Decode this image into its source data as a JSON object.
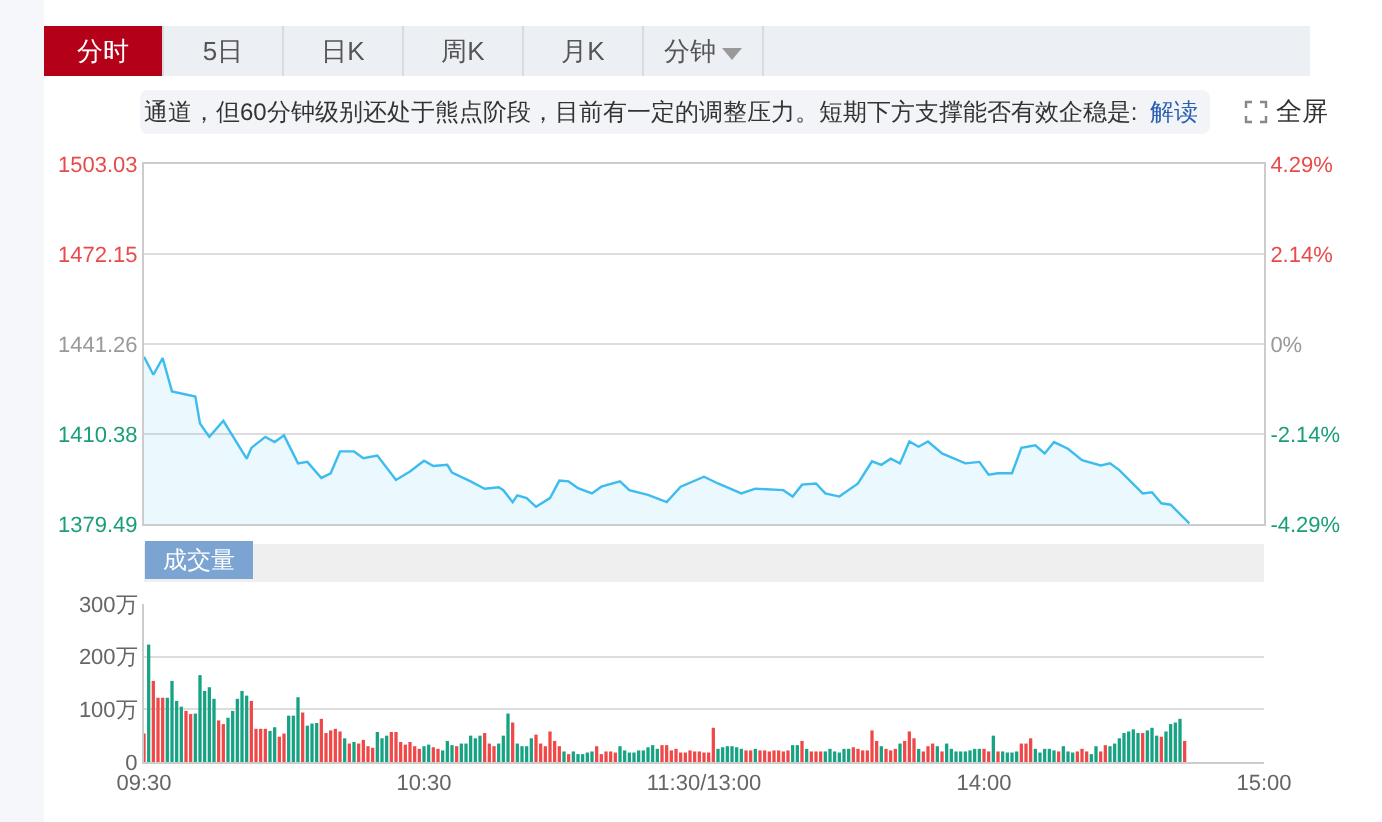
{
  "chart_data": [
    {
      "type": "area",
      "annotations": [
        "分时",
        "5日",
        "日K",
        "周K",
        "月K",
        "分钟",
        "通道，但60分钟级别还处于熊点阶段，目前有一定的调整压力。短期下方支撑能否有效企稳是:",
        "解读",
        "全屏"
      ],
      "categories": [
        null,
        null,
        null,
        null,
        null,
        null,
        null,
        null,
        null,
        null,
        null,
        null,
        null,
        null,
        null,
        null,
        null,
        null,
        null,
        null,
        null,
        null,
        null,
        null,
        null,
        null,
        null,
        null,
        null,
        null,
        null,
        null,
        null,
        null,
        null,
        null,
        null,
        null,
        null,
        null,
        null,
        null,
        null,
        null,
        null,
        null,
        null,
        null,
        null,
        null,
        null,
        null,
        null,
        null,
        null,
        null,
        null,
        null,
        null,
        null,
        null,
        null,
        null,
        null,
        null,
        null,
        null,
        null,
        null,
        null,
        null,
        null,
        null,
        null,
        null,
        null,
        null,
        null,
        null,
        null,
        null,
        null,
        null,
        null,
        null,
        null,
        null,
        null,
        null,
        null,
        null,
        null,
        null,
        null,
        null,
        null,
        null,
        null,
        null,
        null,
        null,
        null,
        null,
        null,
        null,
        null,
        null,
        null,
        null,
        null,
        null,
        null,
        null,
        null,
        null,
        null,
        null,
        null,
        null,
        null,
        null,
        null,
        null,
        null,
        null,
        null,
        null,
        null,
        null,
        null,
        null,
        null,
        null,
        null,
        null,
        null,
        null,
        null,
        null,
        null,
        null,
        null,
        null,
        null,
        null,
        null,
        null,
        null,
        null,
        null,
        null,
        null,
        null,
        null,
        null,
        null,
        null,
        null,
        null,
        null,
        null,
        null,
        null,
        null,
        null,
        null,
        null,
        null,
        null,
        null,
        null,
        null,
        null,
        null,
        null,
        null,
        null,
        null,
        null,
        null,
        null,
        null,
        null,
        null,
        null,
        null,
        null,
        null,
        null,
        null,
        null,
        null,
        null,
        null,
        null,
        null,
        null,
        null,
        null,
        null,
        null,
        null,
        null,
        null,
        null,
        null,
        null,
        null,
        null,
        null,
        null,
        null,
        null,
        null,
        null,
        null,
        null,
        null,
        null,
        null,
        null,
        null,
        null,
        null,
        null,
        null,
        null,
        null,
        null,
        null,
        null,
        null,
        null,
        null,
        null,
        null,
        null,
        null,
        null,
        null,
        null
      ],
      "series": [
        {
          "color": "#3dbcf0",
          "values": [
            1436.9,
            null,
            1430.7,
            null,
            1436.4,
            null,
            1425.0,
            null,
            null,
            null,
            null,
            1423.2,
            1414.0,
            null,
            1409.4,
            null,
            null,
            1414.9,
            null,
            null,
            null,
            null,
            1401.9,
            1405.6,
            null,
            null,
            1409.4,
            null,
            1407.6,
            null,
            1409.9,
            null,
            null,
            1400.3,
            null,
            1400.8,
            null,
            null,
            1395.3,
            null,
            1396.9,
            null,
            1404.4,
            null,
            null,
            1404.4,
            null,
            1402.1,
            null,
            null,
            1403.0,
            null,
            null,
            null,
            1394.6,
            null,
            null,
            1397.5,
            null,
            null,
            1401.2,
            null,
            1399.4,
            null,
            null,
            1399.8,
            1397.1,
            null,
            null,
            null,
            1394.1,
            null,
            null,
            1391.6,
            null,
            null,
            1392.1,
            1391.1,
            null,
            1387.0,
            1389.3,
            null,
            1388.4,
            null,
            1385.4,
            null,
            null,
            1388.4,
            null,
            1394.4,
            null,
            1394.1,
            null,
            1391.8,
            null,
            null,
            1390.0,
            null,
            1392.3,
            null,
            null,
            null,
            1394.1,
            null,
            1391.1,
            null,
            null,
            null,
            1389.5,
            null,
            null,
            null,
            1387.0,
            null,
            null,
            1392.3,
            null,
            null,
            null,
            null,
            1395.7,
            null,
            null,
            1393.4,
            null,
            null,
            null,
            null,
            1390.0,
            null,
            null,
            1391.6,
            null,
            null,
            null,
            null,
            null,
            1391.1,
            null,
            1388.9,
            null,
            1393.0,
            null,
            null,
            1393.4,
            null,
            1390.0,
            null,
            null,
            1388.9,
            null,
            null,
            null,
            1393.4,
            null,
            null,
            1401.0,
            null,
            1399.8,
            null,
            1401.9,
            null,
            1400.3,
            null,
            1407.8,
            null,
            1406.0,
            null,
            1407.8,
            null,
            null,
            1403.7,
            null,
            null,
            null,
            null,
            1400.3,
            null,
            null,
            1400.8,
            null,
            1396.4,
            null,
            1396.9,
            null,
            null,
            1396.9,
            null,
            1405.6,
            null,
            null,
            1406.5,
            null,
            1403.7,
            null,
            1407.6,
            null,
            null,
            1405.3,
            null,
            null,
            1401.4,
            null,
            null,
            null,
            1399.6,
            null,
            1400.3,
            null,
            1398.0,
            null,
            null,
            null,
            null,
            1390.0,
            null,
            1390.4,
            null,
            1386.6,
            null,
            1386.1,
            null,
            null,
            null,
            1379.7,
            null,
            null,
            null,
            null,
            null,
            null,
            null,
            null,
            null,
            null,
            null,
            null,
            null,
            null,
            null,
            null
          ]
        }
      ],
      "ylim": [
        1379.49,
        1503.03
      ],
      "yticks": [
        1379.49,
        1410.38,
        1441.26,
        1472.15,
        1503.03
      ],
      "y2lim": [
        -4.29,
        4.29
      ],
      "y2ticks": [
        {
          "value": -4.29,
          "label": "-4.29%"
        },
        {
          "value": -2.14,
          "label": "-2.14%"
        },
        {
          "value": 0,
          "label": "0%"
        },
        {
          "value": 2.14,
          "label": "2.14%"
        },
        {
          "value": 4.29,
          "label": "4.29%"
        }
      ],
      "grid": "y",
      "tick_labels": "y"
    },
    {
      "type": "bar",
      "title": "成交量",
      "categories": [
        "09:30",
        null,
        null,
        null,
        null,
        null,
        null,
        null,
        null,
        null,
        null,
        null,
        null,
        null,
        null,
        null,
        null,
        null,
        null,
        null,
        null,
        null,
        null,
        null,
        null,
        null,
        null,
        null,
        null,
        null,
        null,
        null,
        null,
        null,
        null,
        null,
        null,
        null,
        null,
        null,
        null,
        null,
        null,
        null,
        null,
        null,
        null,
        null,
        null,
        null,
        null,
        null,
        null,
        null,
        null,
        null,
        null,
        null,
        null,
        null,
        "10:30",
        null,
        null,
        null,
        null,
        null,
        null,
        null,
        null,
        null,
        null,
        null,
        null,
        null,
        null,
        null,
        null,
        null,
        null,
        null,
        null,
        null,
        null,
        null,
        null,
        null,
        null,
        null,
        null,
        null,
        null,
        null,
        null,
        null,
        null,
        null,
        null,
        null,
        null,
        null,
        null,
        null,
        null,
        null,
        null,
        null,
        null,
        null,
        null,
        null,
        null,
        null,
        null,
        null,
        null,
        null,
        null,
        null,
        null,
        null,
        "11:30/13:00",
        null,
        null,
        null,
        null,
        null,
        null,
        null,
        null,
        null,
        null,
        null,
        null,
        null,
        null,
        null,
        null,
        null,
        null,
        null,
        null,
        null,
        null,
        null,
        null,
        null,
        null,
        null,
        null,
        null,
        null,
        null,
        null,
        null,
        null,
        null,
        null,
        null,
        null,
        null,
        null,
        null,
        null,
        null,
        null,
        null,
        null,
        null,
        null,
        null,
        null,
        null,
        null,
        null,
        null,
        null,
        null,
        null,
        null,
        null,
        "14:00",
        null,
        null,
        null,
        null,
        null,
        null,
        null,
        null,
        null,
        null,
        null,
        null,
        null,
        null,
        null,
        null,
        null,
        null,
        null,
        null,
        null,
        null,
        null,
        null,
        null,
        null,
        null,
        null,
        null,
        null,
        null,
        null,
        null,
        null,
        null,
        null,
        null,
        null,
        null,
        null,
        null,
        null,
        null,
        null,
        null,
        null,
        null,
        null,
        null,
        null,
        null,
        null,
        null,
        null,
        null,
        null,
        null,
        null,
        null,
        "15:00"
      ],
      "series": [
        {
          "color": "#f04848",
          "values": [
            54,
            null,
            154,
            122,
            122,
            null,
            null,
            null,
            null,
            97,
            91,
            null,
            null,
            null,
            null,
            null,
            79,
            72,
            null,
            null,
            null,
            null,
            null,
            116,
            63,
            63,
            63,
            null,
            null,
            48,
            54,
            null,
            null,
            null,
            94,
            null,
            null,
            null,
            82,
            55,
            60,
            63,
            58,
            null,
            35,
            null,
            35,
            42,
            30,
            27,
            null,
            null,
            null,
            57,
            57,
            38,
            33,
            38,
            30,
            25,
            null,
            null,
            28,
            25,
            null,
            null,
            null,
            30,
            null,
            null,
            null,
            null,
            null,
            55,
            35,
            30,
            null,
            null,
            null,
            75,
            null,
            null,
            null,
            null,
            52,
            35,
            30,
            58,
            40,
            30,
            null,
            15,
            null,
            null,
            null,
            null,
            null,
            30,
            15,
            20,
            20,
            18,
            null,
            null,
            null,
            null,
            null,
            null,
            null,
            null,
            null,
            32,
            32,
            22,
            25,
            18,
            18,
            22,
            20,
            20,
            18,
            18,
            65,
            null,
            null,
            null,
            null,
            null,
            null,
            22,
            22,
            null,
            22,
            22,
            20,
            22,
            22,
            20,
            22,
            null,
            null,
            40,
            null,
            20,
            20,
            20,
            null,
            null,
            null,
            null,
            null,
            null,
            28,
            25,
            22,
            22,
            60,
            40,
            null,
            25,
            22,
            25,
            null,
            40,
            58,
            45,
            null,
            20,
            30,
            35,
            null,
            20,
            null,
            null,
            null,
            null,
            null,
            null,
            null,
            null,
            25,
            20,
            null,
            20,
            null,
            null,
            null,
            null,
            35,
            35,
            45,
            null,
            null,
            null,
            null,
            null,
            20,
            null,
            null,
            null,
            20,
            25,
            20,
            null,
            null,
            20,
            32,
            null,
            null,
            null,
            null,
            null,
            null,
            null,
            55,
            null,
            null,
            null,
            48,
            null,
            null,
            null,
            null,
            40,
            null,
            null,
            null,
            null,
            null,
            null,
            null,
            null,
            null,
            null,
            null,
            null,
            null,
            null,
            null,
            null,
            null
          ]
        },
        {
          "color": "#15a383",
          "values": [
            null,
            223,
            null,
            null,
            null,
            122,
            154,
            116,
            105,
            null,
            null,
            92,
            165,
            135,
            142,
            120,
            null,
            null,
            84,
            97,
            120,
            135,
            126,
            null,
            null,
            null,
            null,
            59,
            66,
            null,
            null,
            88,
            88,
            123,
            null,
            69,
            73,
            74,
            null,
            null,
            null,
            null,
            null,
            45,
            null,
            38,
            null,
            null,
            null,
            null,
            57,
            45,
            50,
            null,
            null,
            null,
            null,
            null,
            null,
            null,
            30,
            33,
            null,
            null,
            22,
            40,
            32,
            null,
            35,
            35,
            50,
            45,
            50,
            null,
            null,
            null,
            35,
            50,
            92,
            null,
            35,
            30,
            30,
            45,
            null,
            null,
            null,
            null,
            null,
            null,
            20,
            null,
            20,
            15,
            15,
            18,
            20,
            null,
            null,
            null,
            null,
            null,
            30,
            22,
            18,
            18,
            22,
            22,
            28,
            32,
            25,
            null,
            null,
            null,
            null,
            null,
            null,
            null,
            null,
            null,
            null,
            null,
            null,
            25,
            28,
            30,
            30,
            28,
            25,
            null,
            null,
            25,
            null,
            null,
            null,
            null,
            null,
            null,
            null,
            32,
            32,
            null,
            25,
            null,
            null,
            null,
            20,
            25,
            20,
            18,
            25,
            25,
            null,
            null,
            null,
            null,
            null,
            null,
            30,
            null,
            null,
            null,
            35,
            null,
            null,
            null,
            25,
            null,
            null,
            null,
            30,
            null,
            35,
            25,
            20,
            20,
            20,
            22,
            25,
            25,
            null,
            null,
            50,
            null,
            20,
            18,
            18,
            20,
            null,
            null,
            null,
            25,
            18,
            25,
            25,
            22,
            null,
            30,
            20,
            18,
            null,
            null,
            null,
            15,
            30,
            null,
            null,
            30,
            35,
            45,
            55,
            58,
            62,
            55,
            null,
            60,
            65,
            50,
            null,
            58,
            72,
            75,
            82,
            null,
            null,
            null,
            null,
            null,
            null,
            null,
            null,
            null,
            null,
            null,
            null,
            null,
            null,
            null,
            null,
            null,
            null
          ]
        }
      ],
      "ylim": [
        0,
        300
      ],
      "yticks": [
        0,
        {
          "value": 100,
          "label": "100万"
        },
        {
          "value": 200,
          "label": "200万"
        },
        {
          "value": 300,
          "label": "300万"
        }
      ],
      "grid": "y"
    }
  ]
}
